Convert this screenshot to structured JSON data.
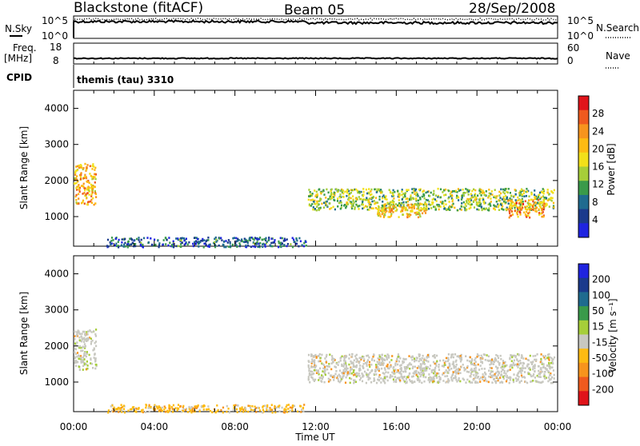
{
  "header": {
    "station": "Blackstone (fitACF)",
    "beam": "Beam 05",
    "date": "28/Sep/2008"
  },
  "strips": {
    "nsky_label": "N.Sky",
    "nsky_ticks": [
      "10^5",
      "10^0"
    ],
    "nsearch_label": "N.Search",
    "nsearch_ticks": [
      "10^5",
      "10^0"
    ],
    "freq_label": "Freq.",
    "freq_unit": "[MHz]",
    "freq_ticks": [
      "18",
      "8"
    ],
    "nave_label": "Nave",
    "nave_ticks": [
      "60",
      "0"
    ],
    "cpid_label": "CPID",
    "cpid_text": "themis (tau) 3310"
  },
  "panels": {
    "ylabel": "Slant Range [km]",
    "yticks": [
      "4000",
      "3000",
      "2000",
      "1000"
    ],
    "xticks": [
      "00:00",
      "04:00",
      "08:00",
      "12:00",
      "16:00",
      "20:00",
      "00:00"
    ],
    "xlabel": "Time UT"
  },
  "power_scale": {
    "label": "Power [dB]",
    "ticks": [
      "28",
      "24",
      "20",
      "16",
      "12",
      "8",
      "4"
    ],
    "colors": [
      "#e0141a",
      "#ef5a1e",
      "#f7941d",
      "#fdbb12",
      "#f2e01a",
      "#a6ce39",
      "#3a9a4a",
      "#1f6b8f",
      "#1b3a8c",
      "#1f24e0"
    ]
  },
  "velocity_scale": {
    "label": "Velocity [m s⁻¹]",
    "ticks": [
      "200",
      "100",
      "50",
      "15",
      "-15",
      "-50",
      "-100",
      "-200"
    ],
    "colors": [
      "#1f24e0",
      "#1b3a8c",
      "#1f6b8f",
      "#3a9a4a",
      "#a6ce39",
      "#c8c8c0",
      "#fdbb12",
      "#f7941d",
      "#ef5a1e",
      "#e0141a"
    ]
  },
  "chart_data": [
    {
      "type": "line",
      "title": "N.Sky / N.Search",
      "x_range_hours": [
        0,
        24
      ],
      "y_scale": "log",
      "ylim": [
        "10^0",
        "10^5"
      ],
      "description_values": "noise near top of scale throughout the day"
    },
    {
      "type": "line",
      "title": "Freq. / Nave",
      "x_range_hours": [
        0,
        24
      ],
      "ylim_freq_mhz": [
        8,
        18
      ],
      "ylim_nave": [
        0,
        60
      ],
      "freq_level_mhz": 10
    },
    {
      "type": "heatmap",
      "title": "Power",
      "x_range_hours": [
        0,
        24
      ],
      "ylim_km": [
        180,
        4500
      ],
      "zlim_db": [
        0,
        32
      ],
      "regions": [
        {
          "t0": 0.0,
          "t1": 1.1,
          "r0": 1350,
          "r1": 2500,
          "level": 22
        },
        {
          "t0": 1.6,
          "t1": 11.5,
          "r0": 180,
          "r1": 450,
          "level": 6
        },
        {
          "t0": 11.6,
          "t1": 23.8,
          "r0": 1200,
          "r1": 1800,
          "level": 14
        },
        {
          "t0": 15.0,
          "t1": 17.5,
          "r0": 1000,
          "r1": 1400,
          "level": 20
        },
        {
          "t0": 21.5,
          "t1": 23.3,
          "r0": 1000,
          "r1": 1500,
          "level": 24
        }
      ]
    },
    {
      "type": "heatmap",
      "title": "Velocity",
      "x_range_hours": [
        0,
        24
      ],
      "ylim_km": [
        180,
        4500
      ],
      "zlim_ms": [
        -200,
        200
      ],
      "regions": [
        {
          "t0": 0.0,
          "t1": 1.1,
          "r0": 1350,
          "r1": 2500,
          "level": 0
        },
        {
          "t0": 1.6,
          "t1": 11.5,
          "r0": 180,
          "r1": 400,
          "level": -50
        },
        {
          "t0": 11.6,
          "t1": 23.8,
          "r0": 1000,
          "r1": 1800,
          "level": 0
        }
      ]
    }
  ]
}
